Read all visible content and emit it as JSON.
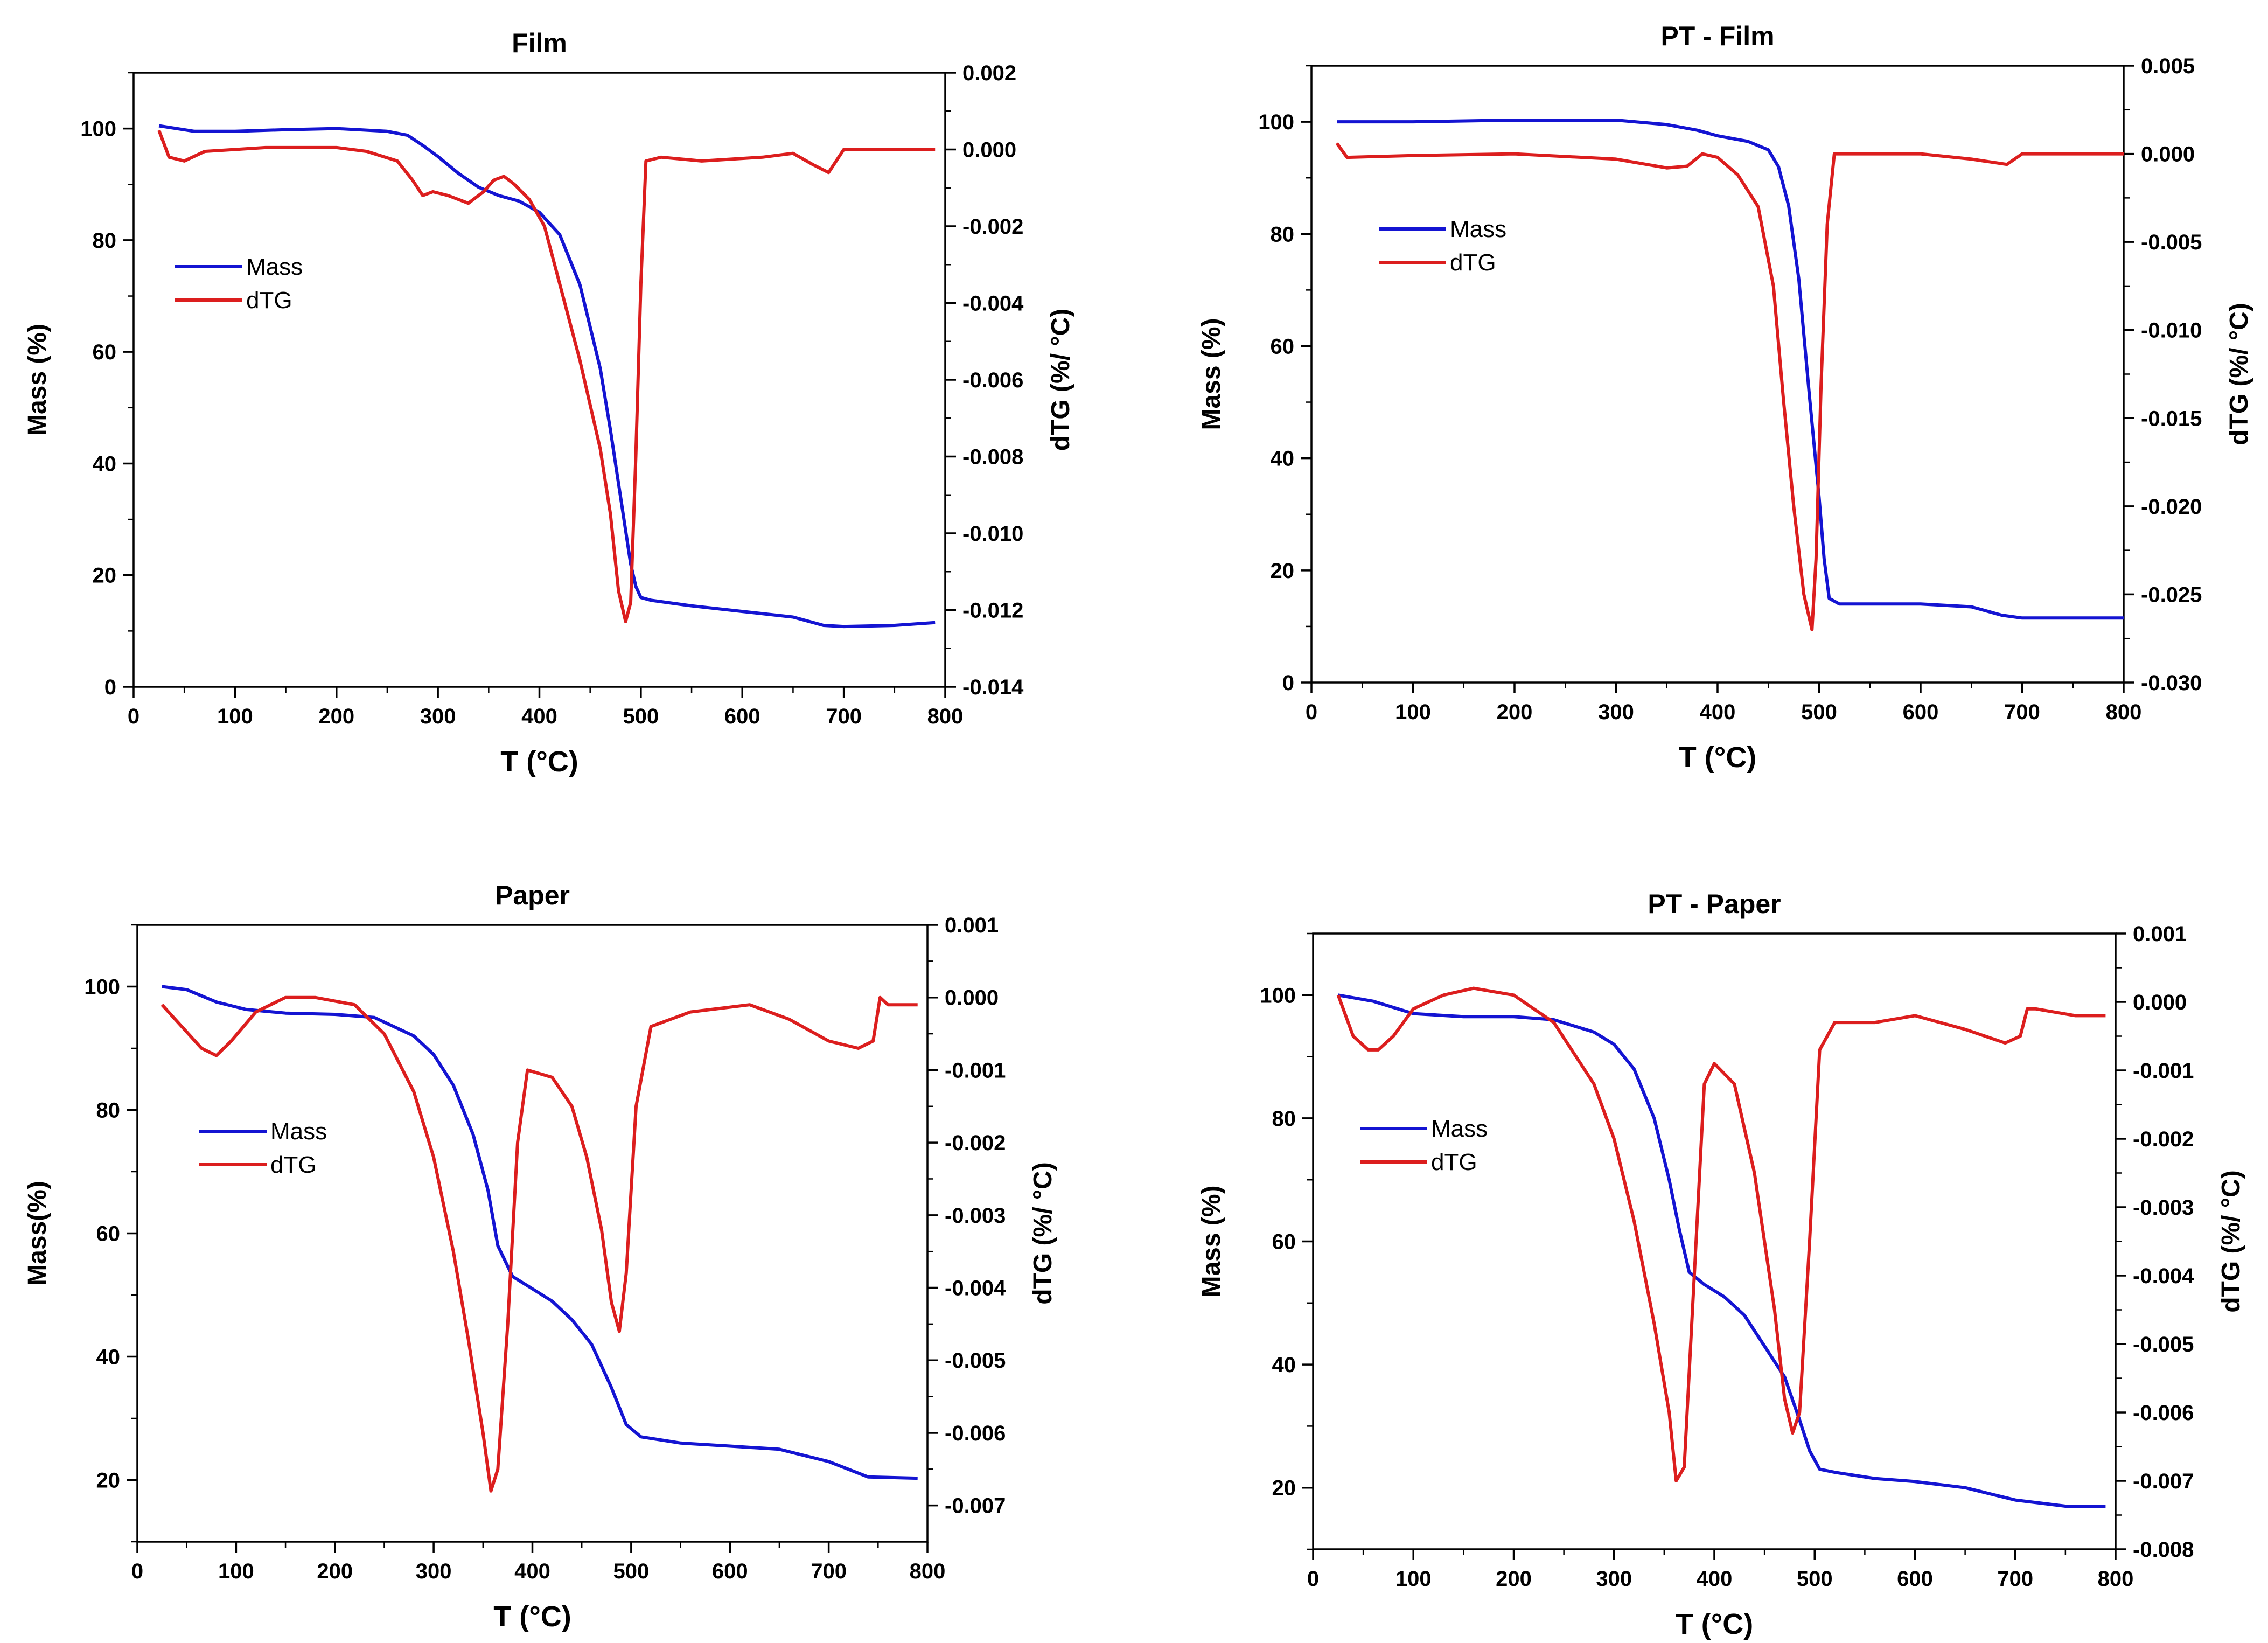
{
  "colors": {
    "mass": "#1414d2",
    "dtg": "#dc1e1e",
    "axis": "#000000",
    "background": "#ffffff"
  },
  "chart_data": [
    {
      "type": "line",
      "title": "Film",
      "xlabel": "T (°C)",
      "ylabel": "Mass (%)",
      "y2label": "dTG (%/ °C)",
      "xlim": [
        0,
        800
      ],
      "ylim": [
        0,
        110
      ],
      "y2lim": [
        -0.014,
        0.002
      ],
      "xticks": [
        "0",
        "100",
        "200",
        "300",
        "400",
        "500",
        "600",
        "700",
        "800"
      ],
      "yticks": [
        "0",
        "20",
        "40",
        "60",
        "80",
        "100"
      ],
      "y2ticks": [
        "-0.014",
        "-0.012",
        "-0.010",
        "-0.008",
        "-0.006",
        "-0.004",
        "-0.002",
        "0.000",
        "0.002"
      ],
      "legend": {
        "position": "center-left",
        "entries": [
          "Mass",
          "dTG"
        ]
      },
      "series": [
        {
          "name": "Mass",
          "axis": "left",
          "x": [
            25,
            60,
            100,
            150,
            200,
            250,
            270,
            285,
            300,
            320,
            340,
            360,
            380,
            400,
            420,
            440,
            460,
            470,
            480,
            490,
            495,
            500,
            510,
            550,
            600,
            650,
            680,
            700,
            750,
            790
          ],
          "y": [
            100.5,
            99.5,
            99.5,
            99.8,
            100,
            99.5,
            98.8,
            97,
            95,
            92,
            89.5,
            88,
            87,
            85,
            81,
            72,
            57,
            46,
            34,
            22,
            18,
            16,
            15.5,
            14.5,
            13.5,
            12.5,
            11,
            10.8,
            11,
            11.5
          ]
        },
        {
          "name": "dTG",
          "axis": "right",
          "x": [
            25,
            35,
            50,
            70,
            100,
            130,
            160,
            200,
            230,
            260,
            275,
            285,
            295,
            310,
            330,
            345,
            355,
            365,
            375,
            390,
            405,
            420,
            440,
            460,
            470,
            478,
            485,
            490,
            495,
            500,
            505,
            520,
            560,
            620,
            650,
            670,
            685,
            700,
            720,
            760,
            790
          ],
          "y": [
            0.0005,
            -0.0002,
            -0.0003,
            -5e-05,
            0.0,
            5e-05,
            5e-05,
            5e-05,
            -5e-05,
            -0.0003,
            -0.0008,
            -0.0012,
            -0.0011,
            -0.0012,
            -0.0014,
            -0.0011,
            -0.0008,
            -0.0007,
            -0.0009,
            -0.0013,
            -0.002,
            -0.0035,
            -0.0055,
            -0.0078,
            -0.0095,
            -0.0115,
            -0.0123,
            -0.0118,
            -0.008,
            -0.0035,
            -0.0003,
            -0.0002,
            -0.0003,
            -0.0002,
            -0.0001,
            -0.0004,
            -0.0006,
            0.0,
            0.0,
            0.0,
            0.0
          ]
        }
      ]
    },
    {
      "type": "line",
      "title": "PT - Film",
      "xlabel": "T (°C)",
      "ylabel": "Mass (%)",
      "y2label": "dTG (%/ °C)",
      "xlim": [
        0,
        800
      ],
      "ylim": [
        0,
        110
      ],
      "y2lim": [
        -0.03,
        0.005
      ],
      "xticks": [
        "0",
        "100",
        "200",
        "300",
        "400",
        "500",
        "600",
        "700",
        "800"
      ],
      "yticks": [
        "0",
        "20",
        "40",
        "60",
        "80",
        "100"
      ],
      "y2ticks": [
        "-0.030",
        "-0.025",
        "-0.020",
        "-0.015",
        "-0.010",
        "-0.005",
        "0.000",
        "0.005"
      ],
      "legend": {
        "position": "top-left",
        "entries": [
          "Mass",
          "dTG"
        ]
      },
      "series": [
        {
          "name": "Mass",
          "axis": "left",
          "x": [
            25,
            100,
            200,
            300,
            350,
            380,
            400,
            430,
            450,
            460,
            470,
            480,
            490,
            500,
            505,
            510,
            520,
            550,
            600,
            650,
            680,
            700,
            750,
            800
          ],
          "y": [
            100,
            100,
            100.3,
            100.3,
            99.5,
            98.5,
            97.5,
            96.5,
            95,
            92,
            85,
            72,
            52,
            33,
            22,
            15,
            14,
            14,
            14,
            13.5,
            12,
            11.5,
            11.5,
            11.5
          ]
        },
        {
          "name": "dTG",
          "axis": "right",
          "x": [
            25,
            35,
            100,
            200,
            300,
            350,
            370,
            385,
            400,
            420,
            440,
            455,
            465,
            475,
            485,
            493,
            497,
            502,
            508,
            515,
            525,
            600,
            650,
            685,
            700,
            720,
            800
          ],
          "y": [
            0.0006,
            -0.0002,
            -0.0001,
            0.0,
            -0.0003,
            -0.0008,
            -0.0007,
            0.0,
            -0.0002,
            -0.0012,
            -0.003,
            -0.0075,
            -0.014,
            -0.02,
            -0.025,
            -0.027,
            -0.023,
            -0.013,
            -0.004,
            0.0,
            0.0,
            0.0,
            -0.0003,
            -0.0006,
            0.0,
            0.0,
            0.0
          ]
        }
      ]
    },
    {
      "type": "line",
      "title": "Paper",
      "xlabel": "T (°C)",
      "ylabel": "Mass(%)",
      "y2label": "dTG (%/ °C)",
      "xlim": [
        0,
        800
      ],
      "ylim": [
        10,
        110
      ],
      "y2lim": [
        -0.0075,
        0.001
      ],
      "xticks": [
        "0",
        "100",
        "200",
        "300",
        "400",
        "500",
        "600",
        "700",
        "800"
      ],
      "yticks": [
        "20",
        "40",
        "60",
        "80",
        "100"
      ],
      "y2ticks": [
        "-0.007",
        "-0.006",
        "-0.005",
        "-0.004",
        "-0.003",
        "-0.002",
        "-0.001",
        "0.000",
        "0.001"
      ],
      "legend": {
        "position": "center-left",
        "entries": [
          "Mass",
          "dTG"
        ]
      },
      "series": [
        {
          "name": "Mass",
          "axis": "left",
          "x": [
            25,
            50,
            80,
            110,
            150,
            200,
            240,
            280,
            300,
            320,
            340,
            355,
            365,
            380,
            400,
            420,
            440,
            460,
            480,
            495,
            510,
            550,
            600,
            650,
            700,
            740,
            790
          ],
          "y": [
            100,
            99.5,
            97.5,
            96.3,
            95.7,
            95.5,
            95,
            92,
            89,
            84,
            76,
            67,
            58,
            53,
            51,
            49,
            46,
            42,
            35,
            29,
            27,
            26,
            25.5,
            25,
            23,
            20.5,
            20.3
          ]
        },
        {
          "name": "dTG",
          "axis": "right",
          "x": [
            25,
            45,
            65,
            80,
            95,
            120,
            150,
            180,
            220,
            250,
            280,
            300,
            320,
            335,
            350,
            358,
            365,
            375,
            385,
            395,
            420,
            440,
            455,
            470,
            480,
            488,
            495,
            505,
            520,
            560,
            620,
            660,
            700,
            730,
            745,
            752,
            760,
            790
          ],
          "y": [
            -0.0001,
            -0.0004,
            -0.0007,
            -0.0008,
            -0.0006,
            -0.0002,
            0.0,
            0.0,
            -0.0001,
            -0.0005,
            -0.0013,
            -0.0022,
            -0.0035,
            -0.0047,
            -0.006,
            -0.0068,
            -0.0065,
            -0.0045,
            -0.002,
            -0.001,
            -0.0011,
            -0.0015,
            -0.0022,
            -0.0032,
            -0.0042,
            -0.0046,
            -0.0038,
            -0.0015,
            -0.0004,
            -0.0002,
            -0.0001,
            -0.0003,
            -0.0006,
            -0.0007,
            -0.0006,
            0.0,
            -0.0001,
            -0.0001
          ]
        }
      ]
    },
    {
      "type": "line",
      "title": "PT - Paper",
      "xlabel": "T (°C)",
      "ylabel": "Mass (%)",
      "y2label": "dTG (%/ °C)",
      "xlim": [
        0,
        800
      ],
      "ylim": [
        10,
        110
      ],
      "y2lim": [
        -0.008,
        0.001
      ],
      "xticks": [
        "0",
        "100",
        "200",
        "300",
        "400",
        "500",
        "600",
        "700",
        "800"
      ],
      "yticks": [
        "20",
        "40",
        "60",
        "80",
        "100"
      ],
      "y2ticks": [
        "-0.008",
        "-0.007",
        "-0.006",
        "-0.005",
        "-0.004",
        "-0.003",
        "-0.002",
        "-0.001",
        "0.000",
        "0.001"
      ],
      "legend": {
        "position": "center-left",
        "entries": [
          "Mass",
          "dTG"
        ]
      },
      "series": [
        {
          "name": "Mass",
          "axis": "left",
          "x": [
            25,
            60,
            100,
            150,
            200,
            240,
            280,
            300,
            320,
            340,
            355,
            365,
            375,
            390,
            410,
            430,
            450,
            470,
            485,
            495,
            505,
            520,
            560,
            600,
            650,
            700,
            750,
            790
          ],
          "y": [
            100,
            99,
            97,
            96.5,
            96.5,
            96,
            94,
            92,
            88,
            80,
            70,
            62,
            55,
            53,
            51,
            48,
            43,
            38,
            31,
            26,
            23,
            22.5,
            21.5,
            21,
            20,
            18,
            17,
            17
          ]
        },
        {
          "name": "dTG",
          "axis": "right",
          "x": [
            25,
            40,
            55,
            65,
            80,
            100,
            130,
            160,
            200,
            240,
            280,
            300,
            320,
            340,
            355,
            362,
            370,
            380,
            390,
            400,
            420,
            440,
            460,
            470,
            478,
            485,
            495,
            505,
            520,
            560,
            600,
            650,
            690,
            705,
            712,
            720,
            760,
            790
          ],
          "y": [
            0.0001,
            -0.0005,
            -0.0007,
            -0.0007,
            -0.0005,
            -0.0001,
            0.0001,
            0.0002,
            0.0001,
            -0.0003,
            -0.0012,
            -0.002,
            -0.0032,
            -0.0047,
            -0.006,
            -0.007,
            -0.0068,
            -0.004,
            -0.0012,
            -0.0009,
            -0.0012,
            -0.0025,
            -0.0045,
            -0.0058,
            -0.0063,
            -0.006,
            -0.0035,
            -0.0007,
            -0.0003,
            -0.0003,
            -0.0002,
            -0.0004,
            -0.0006,
            -0.0005,
            -0.0001,
            -0.0001,
            -0.0002,
            -0.0002
          ]
        }
      ]
    }
  ]
}
